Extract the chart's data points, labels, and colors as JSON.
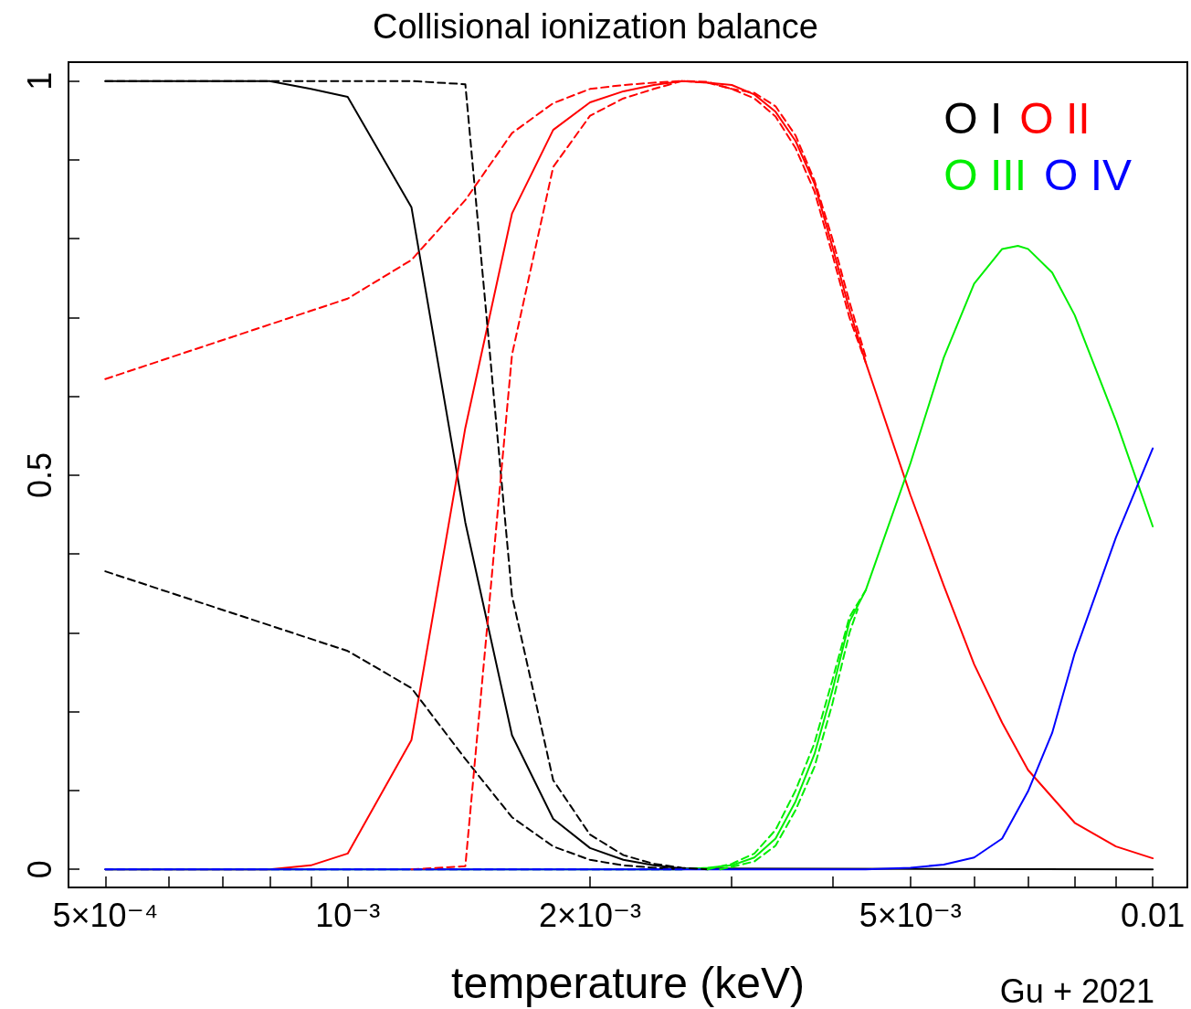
{
  "chart_data": {
    "type": "line",
    "title": "Collisional ionization balance",
    "xlabel": "temperature (keV)",
    "annotations": [
      "Gu + 2021"
    ],
    "log": "x",
    "marker": "none",
    "grid": false,
    "legend": "top right",
    "xlim": [
      0.00045,
      0.01104
    ],
    "ylim": [
      -0.023,
      1.024
    ],
    "xticks": [
      {
        "value": 0.0005,
        "label": "5×10⁻⁴"
      },
      {
        "value": 0.0006,
        "label": null
      },
      {
        "value": 0.0007,
        "label": null
      },
      {
        "value": 0.0008,
        "label": null
      },
      {
        "value": 0.0009,
        "label": null
      },
      {
        "value": 0.001,
        "label": "10⁻³"
      },
      {
        "value": 0.002,
        "label": "2×10⁻³"
      },
      {
        "value": 0.003,
        "label": null
      },
      {
        "value": 0.004,
        "label": null
      },
      {
        "value": 0.005,
        "label": "5×10⁻³"
      },
      {
        "value": 0.006,
        "label": null
      },
      {
        "value": 0.007,
        "label": null
      },
      {
        "value": 0.008,
        "label": null
      },
      {
        "value": 0.009,
        "label": null
      },
      {
        "value": 0.01,
        "label": "0.01"
      }
    ],
    "yticks": [
      0,
      {
        "value": 0.1,
        "label": null
      },
      {
        "value": 0.2,
        "label": null
      },
      {
        "value": 0.3,
        "label": null
      },
      {
        "value": 0.4,
        "label": null
      },
      0.5,
      {
        "value": 0.6,
        "label": null
      },
      {
        "value": 0.7,
        "label": null
      },
      {
        "value": 0.8,
        "label": null
      },
      {
        "value": 0.9,
        "label": null
      },
      1
    ],
    "series": [
      {
        "name": "O I",
        "color": "#000000",
        "line_style": "solid",
        "x": [
          0.0005,
          0.0006,
          0.0007,
          0.0008,
          0.0009,
          0.001,
          0.0012,
          0.0014,
          0.0016,
          0.0018,
          0.002,
          0.0022,
          0.0024,
          0.0026,
          0.01
        ],
        "values": [
          1,
          1,
          1,
          1,
          0.99,
          0.98,
          0.84,
          0.44,
          0.17,
          0.064,
          0.027,
          0.012,
          0.005,
          0.001,
          0
        ]
      },
      {
        "name": "O II",
        "color": "#ff0000",
        "line_style": "solid",
        "x": [
          0.0005,
          0.0008,
          0.0009,
          0.001,
          0.0012,
          0.0014,
          0.0016,
          0.0018,
          0.002,
          0.0022,
          0.0024,
          0.0026,
          0.0028,
          0.003,
          0.0032,
          0.0034,
          0.0036,
          0.0038,
          0.004,
          0.0042,
          0.0044,
          0.005,
          0.0055,
          0.006,
          0.0065,
          0.007,
          0.008,
          0.009,
          0.01
        ],
        "values": [
          0,
          0,
          0.005,
          0.02,
          0.164,
          0.56,
          0.832,
          0.938,
          0.973,
          0.987,
          0.995,
          1,
          0.998,
          0.995,
          0.983,
          0.961,
          0.924,
          0.87,
          0.79,
          0.71,
          0.643,
          0.475,
          0.36,
          0.26,
          0.186,
          0.126,
          0.059,
          0.029,
          0.014
        ]
      },
      {
        "name": "O III",
        "color": "#00ee00",
        "line_style": "solid",
        "x": [
          0.0005,
          0.0026,
          0.0028,
          0.003,
          0.0032,
          0.0034,
          0.0036,
          0.0038,
          0.004,
          0.0042,
          0.0044,
          0.005,
          0.0055,
          0.006,
          0.0065,
          0.0068,
          0.007,
          0.0075,
          0.008,
          0.009,
          0.01
        ],
        "values": [
          0,
          0,
          0.002,
          0.005,
          0.015,
          0.039,
          0.086,
          0.146,
          0.227,
          0.314,
          0.354,
          0.515,
          0.649,
          0.743,
          0.787,
          0.791,
          0.787,
          0.757,
          0.703,
          0.569,
          0.435
        ]
      },
      {
        "name": "O IV",
        "color": "#0000ff",
        "line_style": "solid",
        "x": [
          0.0005,
          0.0044,
          0.005,
          0.0055,
          0.006,
          0.0065,
          0.007,
          0.0075,
          0.008,
          0.009,
          0.01
        ],
        "values": [
          0,
          0,
          0.002,
          0.006,
          0.015,
          0.039,
          0.099,
          0.173,
          0.274,
          0.421,
          0.534
        ]
      },
      {
        "color": "#000000",
        "line_style": "dashed",
        "x": [
          0.0005,
          0.0012,
          0.0014,
          0.0016,
          0.0018,
          0.002,
          0.0022,
          0.0024,
          0.0026,
          0.0028
        ],
        "values": [
          1,
          1,
          0.996,
          0.347,
          0.113,
          0.044,
          0.018,
          0.007,
          0.002,
          0
        ]
      },
      {
        "color": "#000000",
        "line_style": "dashed",
        "x": [
          0.0005,
          0.001,
          0.0012,
          0.0014,
          0.0016,
          0.0018,
          0.002,
          0.0022,
          0.0024,
          0.0026
        ],
        "values": [
          0.378,
          0.277,
          0.23,
          0.14,
          0.066,
          0.029,
          0.012,
          0.005,
          0.002,
          0
        ]
      },
      {
        "color": "#ff0000",
        "line_style": "dashed",
        "x": [
          0.0005,
          0.001,
          0.0012,
          0.0014,
          0.0016,
          0.0018,
          0.002,
          0.0022,
          0.0024,
          0.0026,
          0.0028,
          0.003,
          0.0032,
          0.0034,
          0.0036,
          0.0038,
          0.004,
          0.0042,
          0.0044
        ],
        "values": [
          0.622,
          0.724,
          0.773,
          0.849,
          0.934,
          0.972,
          0.99,
          0.995,
          0.998,
          1,
          0.998,
          0.99,
          0.985,
          0.968,
          0.931,
          0.874,
          0.8,
          0.72,
          0.65
        ]
      },
      {
        "color": "#ff0000",
        "line_style": "dashed",
        "x": [
          0.0012,
          0.0014,
          0.0016,
          0.0018,
          0.002,
          0.0022,
          0.0024,
          0.0026,
          0.0028,
          0.003,
          0.0032,
          0.0034,
          0.0036,
          0.0038,
          0.004,
          0.0042,
          0.0044
        ],
        "values": [
          0,
          0.004,
          0.653,
          0.891,
          0.956,
          0.978,
          0.99,
          1,
          0.999,
          0.99,
          0.978,
          0.955,
          0.915,
          0.86,
          0.78,
          0.7,
          0.643
        ]
      },
      {
        "color": "#00ee00",
        "line_style": "dashed",
        "x": [
          0.0028,
          0.003,
          0.0032,
          0.0034,
          0.0036,
          0.0038,
          0.004,
          0.0042,
          0.0044
        ],
        "values": [
          0,
          0.007,
          0.02,
          0.05,
          0.1,
          0.16,
          0.24,
          0.32,
          0.354
        ]
      },
      {
        "color": "#00ee00",
        "line_style": "dashed",
        "x": [
          0.0029,
          0.003,
          0.0032,
          0.0034,
          0.0036,
          0.0038,
          0.004,
          0.0042,
          0.0043
        ],
        "values": [
          0,
          0.003,
          0.01,
          0.03,
          0.075,
          0.13,
          0.21,
          0.3,
          0.33
        ]
      },
      {
        "color": "#0000ff",
        "line_style": "dashed",
        "x": [
          0.0005,
          0.0026
        ],
        "values": [
          0,
          0
        ]
      }
    ]
  }
}
